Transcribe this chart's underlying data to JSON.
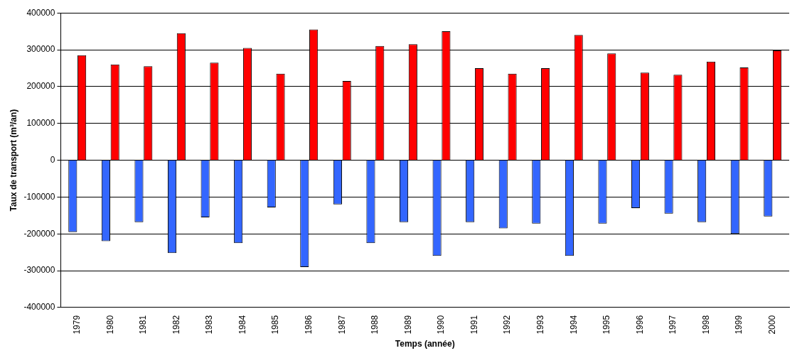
{
  "chart_data": {
    "type": "bar",
    "xlabel": "Temps (année)",
    "ylabel": "Taux de transport (m³/an)",
    "categories": [
      "1979",
      "1980",
      "1981",
      "1982",
      "1983",
      "1984",
      "1985",
      "1986",
      "1987",
      "1988",
      "1989",
      "1990",
      "1991",
      "1992",
      "1993",
      "1994",
      "1995",
      "1996",
      "1997",
      "1998",
      "1999",
      "2000"
    ],
    "series": [
      {
        "color": "#3366ff",
        "values": [
          -195000,
          -220000,
          -168000,
          -252000,
          -155000,
          -225000,
          -128000,
          -290000,
          -120000,
          -225000,
          -168000,
          -260000,
          -168000,
          -185000,
          -172000,
          -260000,
          -172000,
          -130000,
          -145000,
          -168000,
          -200000,
          -153000
        ]
      },
      {
        "color": "#ff0000",
        "values": [
          285000,
          260000,
          255000,
          345000,
          265000,
          305000,
          235000,
          355000,
          215000,
          310000,
          315000,
          350000,
          250000,
          235000,
          250000,
          340000,
          290000,
          238000,
          232000,
          268000,
          252000,
          298000
        ]
      }
    ],
    "ylim": [
      -400000,
      400000
    ],
    "yticks": [
      -400000,
      -300000,
      -200000,
      -100000,
      0,
      100000,
      200000,
      300000,
      400000
    ],
    "grid": "y",
    "legend": false
  }
}
